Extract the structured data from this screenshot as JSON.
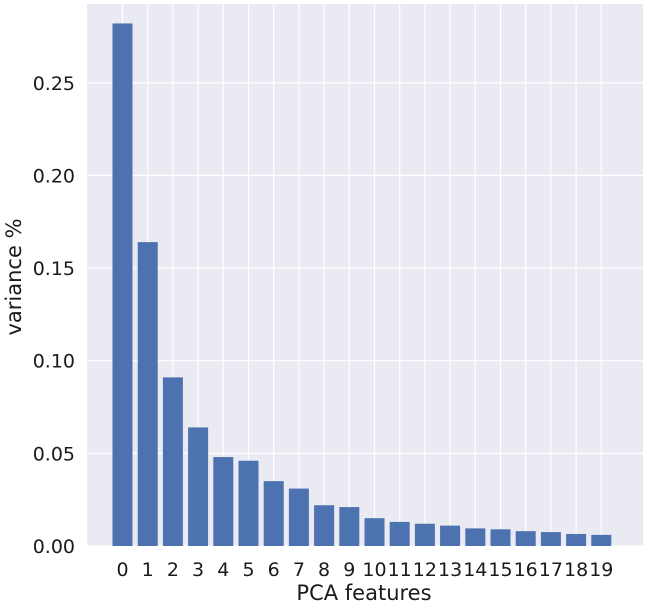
{
  "chart_data": {
    "type": "bar",
    "categories": [
      "0",
      "1",
      "2",
      "3",
      "4",
      "5",
      "6",
      "7",
      "8",
      "9",
      "10",
      "11",
      "12",
      "13",
      "14",
      "15",
      "16",
      "17",
      "18",
      "19"
    ],
    "values": [
      0.282,
      0.164,
      0.091,
      0.064,
      0.048,
      0.046,
      0.035,
      0.031,
      0.022,
      0.021,
      0.015,
      0.013,
      0.012,
      0.011,
      0.0095,
      0.009,
      0.008,
      0.0075,
      0.0065,
      0.006
    ],
    "title": "",
    "xlabel": "PCA features",
    "ylabel": "variance %",
    "ylim": [
      0,
      0.2925
    ],
    "yticks": [
      0.0,
      0.05,
      0.1,
      0.15,
      0.2,
      0.25
    ],
    "ytick_labels": [
      "0.00",
      "0.05",
      "0.10",
      "0.15",
      "0.20",
      "0.25"
    ],
    "grid": true,
    "style": "seaborn-darkgrid",
    "colors": {
      "bar": "#4c72b0",
      "background": "#eaeaf2",
      "grid": "#ffffff"
    }
  }
}
